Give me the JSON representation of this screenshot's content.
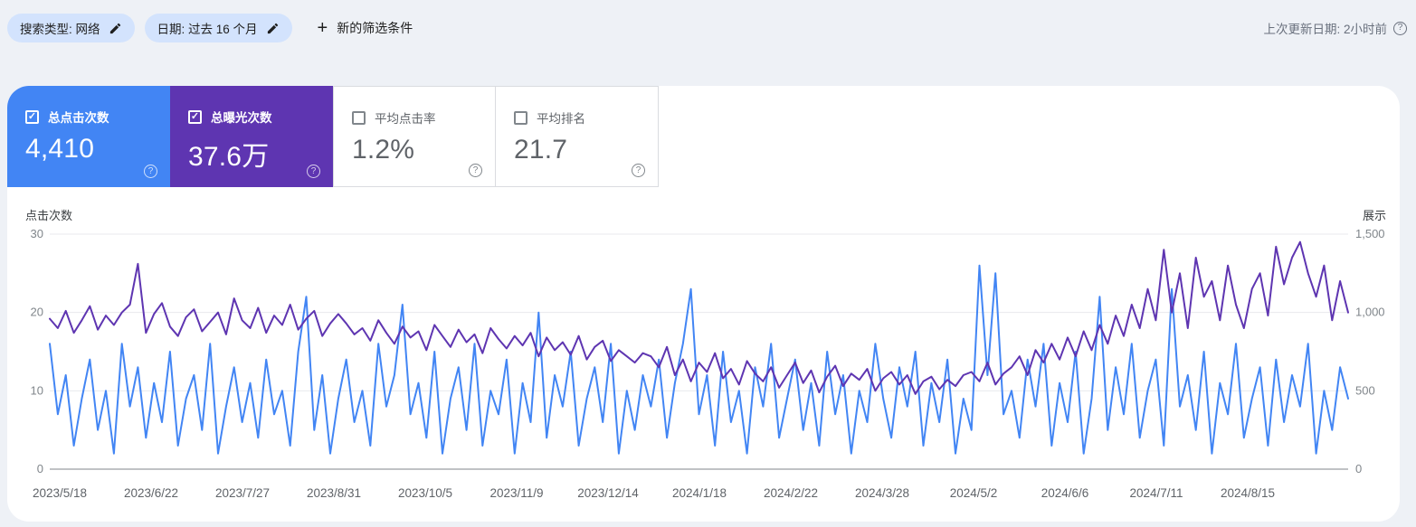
{
  "filter_bar": {
    "chips": [
      {
        "label": "搜索类型: 网络"
      },
      {
        "label": "日期: 过去 16 个月"
      }
    ],
    "plus_glyph": "+",
    "new_filter_label": "新的筛选条件",
    "last_updated_label": "上次更新日期: 2小时前"
  },
  "icons": {
    "check": "✓",
    "help": "?"
  },
  "metrics": {
    "cards": [
      {
        "label": "总点击次数",
        "value": "4,410",
        "checked": true,
        "color": "#4285f4"
      },
      {
        "label": "总曝光次数",
        "value": "37.6万",
        "checked": true,
        "color": "#5e35b1"
      },
      {
        "label": "平均点击率",
        "value": "1.2%",
        "checked": false,
        "color": "#ffffff"
      },
      {
        "label": "平均排名",
        "value": "21.7",
        "checked": false,
        "color": "#ffffff"
      }
    ]
  },
  "chart_data": {
    "type": "line",
    "title": "",
    "grid": true,
    "left_axis": {
      "title": "点击次数",
      "range": [
        0,
        30
      ],
      "ticks": [
        0,
        10,
        20,
        30
      ],
      "tick_labels": [
        "0",
        "10",
        "20",
        "30"
      ]
    },
    "right_axis": {
      "title": "展示",
      "range": [
        0,
        1500
      ],
      "ticks": [
        0,
        500,
        1000,
        1500
      ],
      "tick_labels": [
        "0",
        "500",
        "1,000",
        "1,500"
      ]
    },
    "x_labels": [
      "2023/5/18",
      "2023/6/22",
      "2023/7/27",
      "2023/8/31",
      "2023/10/5",
      "2023/11/9",
      "2023/12/14",
      "2024/1/18",
      "2024/2/22",
      "2024/3/28",
      "2024/5/2",
      "2024/6/6",
      "2024/7/11",
      "2024/8/15"
    ],
    "series": [
      {
        "name": "点击次数",
        "axis": "left",
        "color": "#4285f4",
        "values": [
          16,
          7,
          12,
          3,
          9,
          14,
          5,
          10,
          2,
          16,
          8,
          13,
          4,
          11,
          6,
          15,
          3,
          9,
          12,
          5,
          16,
          2,
          8,
          13,
          6,
          11,
          4,
          14,
          7,
          10,
          3,
          15,
          22,
          5,
          12,
          2,
          9,
          14,
          6,
          10,
          3,
          16,
          8,
          12,
          21,
          7,
          11,
          4,
          15,
          2,
          9,
          13,
          5,
          16,
          3,
          10,
          7,
          14,
          2,
          11,
          6,
          20,
          4,
          12,
          8,
          15,
          3,
          9,
          13,
          6,
          16,
          2,
          10,
          5,
          12,
          8,
          14,
          4,
          11,
          16,
          23,
          7,
          12,
          3,
          15,
          6,
          10,
          2,
          13,
          8,
          16,
          4,
          9,
          14,
          5,
          11,
          3,
          15,
          7,
          12,
          2,
          10,
          6,
          16,
          9,
          4,
          13,
          8,
          15,
          3,
          11,
          6,
          14,
          2,
          9,
          5,
          26,
          12,
          25,
          7,
          10,
          4,
          14,
          8,
          16,
          3,
          11,
          6,
          15,
          2,
          9,
          22,
          5,
          13,
          7,
          16,
          4,
          10,
          14,
          3,
          23,
          8,
          12,
          5,
          15,
          2,
          11,
          7,
          16,
          4,
          9,
          13,
          3,
          14,
          6,
          12,
          8,
          16,
          2,
          10,
          5,
          13,
          9
        ]
      },
      {
        "name": "展示",
        "axis": "right",
        "color": "#5e35b1",
        "values": [
          960,
          900,
          1010,
          870,
          950,
          1040,
          890,
          980,
          920,
          1000,
          1050,
          1310,
          870,
          990,
          1060,
          910,
          850,
          970,
          1020,
          880,
          940,
          1000,
          860,
          1090,
          950,
          900,
          1030,
          870,
          980,
          920,
          1050,
          890,
          960,
          1010,
          850,
          930,
          990,
          930,
          860,
          900,
          820,
          950,
          870,
          800,
          910,
          840,
          880,
          760,
          920,
          850,
          780,
          890,
          810,
          860,
          740,
          900,
          830,
          770,
          850,
          790,
          870,
          720,
          840,
          760,
          810,
          730,
          850,
          700,
          780,
          820,
          690,
          760,
          720,
          680,
          740,
          720,
          650,
          780,
          600,
          700,
          560,
          680,
          620,
          740,
          580,
          640,
          540,
          690,
          610,
          560,
          650,
          520,
          600,
          680,
          550,
          630,
          490,
          590,
          660,
          530,
          610,
          570,
          640,
          500,
          580,
          620,
          540,
          600,
          480,
          560,
          590,
          510,
          570,
          530,
          600,
          620,
          560,
          680,
          540,
          610,
          650,
          720,
          600,
          760,
          680,
          800,
          700,
          840,
          720,
          880,
          760,
          920,
          800,
          980,
          850,
          1050,
          900,
          1150,
          950,
          1400,
          1000,
          1250,
          900,
          1350,
          1100,
          1200,
          950,
          1300,
          1050,
          900,
          1150,
          1250,
          980,
          1420,
          1180,
          1350,
          1450,
          1250,
          1100,
          1300,
          950,
          1200,
          1000
        ]
      }
    ],
    "colors": {
      "grid": "#e8eaed",
      "baseline": "#80868b"
    }
  }
}
